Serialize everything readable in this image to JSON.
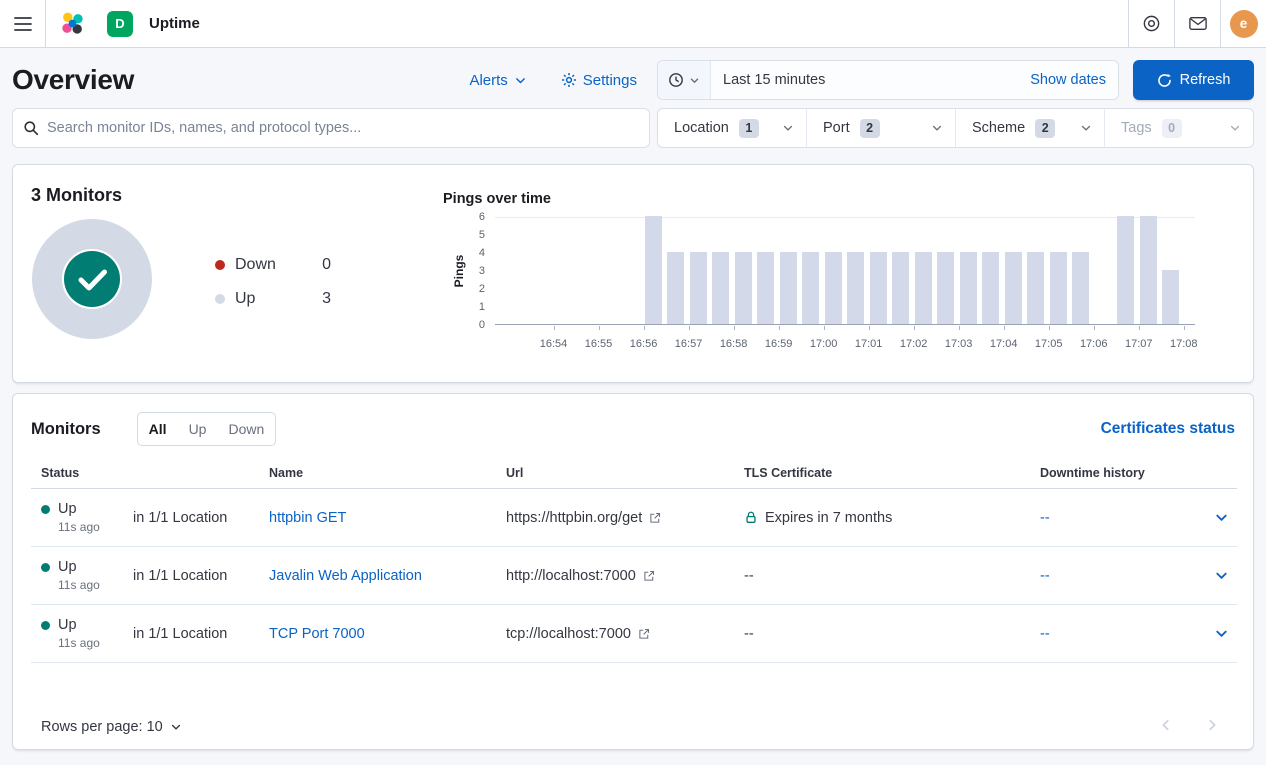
{
  "theme": {
    "accent": "#0b63c5",
    "success": "#017d73",
    "danger": "#bd271e",
    "border": "#d3dae6",
    "page_bg": "#f6f7fb"
  },
  "icons": {
    "menu-icon": "hamburger",
    "elastic-logo-icon": "colored cluster",
    "help-icon": "concentric circles",
    "newsfeed-icon": "envelope",
    "clock-icon": "clock",
    "chevron-down-icon": "chevron down",
    "gear-icon": "gear",
    "refresh-icon": "circular arrow",
    "search-icon": "magnifier",
    "external-link-icon": "box with arrow",
    "lock-icon": "padlock",
    "check-icon": "checkmark",
    "chevron-left-icon": "chevron left",
    "chevron-right-icon": "chevron right"
  },
  "topbar": {
    "breadcrumb": "Uptime",
    "space_initial": "D",
    "space_color": "#00a65f",
    "avatar_initial": "e",
    "avatar_color": "#e8974f"
  },
  "header": {
    "title": "Overview",
    "alerts_label": "Alerts",
    "settings_label": "Settings",
    "timepicker": {
      "value": "Last 15 minutes",
      "show_dates_label": "Show dates"
    },
    "refresh_label": "Refresh"
  },
  "filters": {
    "search_placeholder": "Search monitor IDs, names, and protocol types...",
    "groups": [
      {
        "label": "Location",
        "count": "1",
        "disabled": false
      },
      {
        "label": "Port",
        "count": "2",
        "disabled": false
      },
      {
        "label": "Scheme",
        "count": "2",
        "disabled": false
      },
      {
        "label": "Tags",
        "count": "0",
        "disabled": true
      }
    ]
  },
  "snapshot": {
    "title": "3 Monitors",
    "legend": [
      {
        "label": "Down",
        "value": "0",
        "color": "#bd271e"
      },
      {
        "label": "Up",
        "value": "3",
        "color": "#d3dae6"
      }
    ]
  },
  "chart_data": {
    "type": "bar",
    "title": "Pings over time",
    "ylabel": "Pings",
    "ylim": [
      0,
      6
    ],
    "yticks": [
      0,
      1,
      2,
      3,
      4,
      5,
      6
    ],
    "bar_color": "#d3d9e8",
    "x_axis_ticks": [
      "16:54",
      "16:55",
      "16:56",
      "16:57",
      "16:58",
      "16:59",
      "17:00",
      "17:01",
      "17:02",
      "17:03",
      "17:04",
      "17:05",
      "17:06",
      "17:07",
      "17:08"
    ],
    "bars": [
      {
        "time": "16:56:00",
        "pings": 6
      },
      {
        "time": "16:56:30",
        "pings": 4
      },
      {
        "time": "16:57:00",
        "pings": 4
      },
      {
        "time": "16:57:30",
        "pings": 4
      },
      {
        "time": "16:58:00",
        "pings": 4
      },
      {
        "time": "16:58:30",
        "pings": 4
      },
      {
        "time": "16:59:00",
        "pings": 4
      },
      {
        "time": "16:59:30",
        "pings": 4
      },
      {
        "time": "17:00:00",
        "pings": 4
      },
      {
        "time": "17:00:30",
        "pings": 4
      },
      {
        "time": "17:01:00",
        "pings": 4
      },
      {
        "time": "17:01:30",
        "pings": 4
      },
      {
        "time": "17:02:00",
        "pings": 4
      },
      {
        "time": "17:02:30",
        "pings": 4
      },
      {
        "time": "17:03:00",
        "pings": 4
      },
      {
        "time": "17:03:30",
        "pings": 4
      },
      {
        "time": "17:04:00",
        "pings": 4
      },
      {
        "time": "17:04:30",
        "pings": 4
      },
      {
        "time": "17:05:00",
        "pings": 4
      },
      {
        "time": "17:05:30",
        "pings": 4
      },
      {
        "time": "17:06:30",
        "pings": 6
      },
      {
        "time": "17:07:00",
        "pings": 6
      },
      {
        "time": "17:07:30",
        "pings": 3
      }
    ]
  },
  "monitors": {
    "title": "Monitors",
    "tabs": [
      {
        "label": "All",
        "active": true
      },
      {
        "label": "Up",
        "active": false
      },
      {
        "label": "Down",
        "active": false
      }
    ],
    "certificates_link": "Certificates status",
    "columns": [
      "Status",
      "",
      "Name",
      "Url",
      "TLS Certificate",
      "Downtime history",
      ""
    ],
    "rows": [
      {
        "status": "Up",
        "ago": "11s ago",
        "location": "in 1/1 Location",
        "name": "httpbin GET",
        "url": "https://httpbin.org/get",
        "tls": "Expires in 7 months",
        "tls_lock": true,
        "downtime": "--"
      },
      {
        "status": "Up",
        "ago": "11s ago",
        "location": "in 1/1 Location",
        "name": "Javalin Web Application",
        "url": "http://localhost:7000",
        "tls": "--",
        "tls_lock": false,
        "downtime": "--"
      },
      {
        "status": "Up",
        "ago": "11s ago",
        "location": "in 1/1 Location",
        "name": "TCP Port 7000",
        "url": "tcp://localhost:7000",
        "tls": "--",
        "tls_lock": false,
        "downtime": "--"
      }
    ],
    "rows_per_page_label": "Rows per page: 10"
  }
}
